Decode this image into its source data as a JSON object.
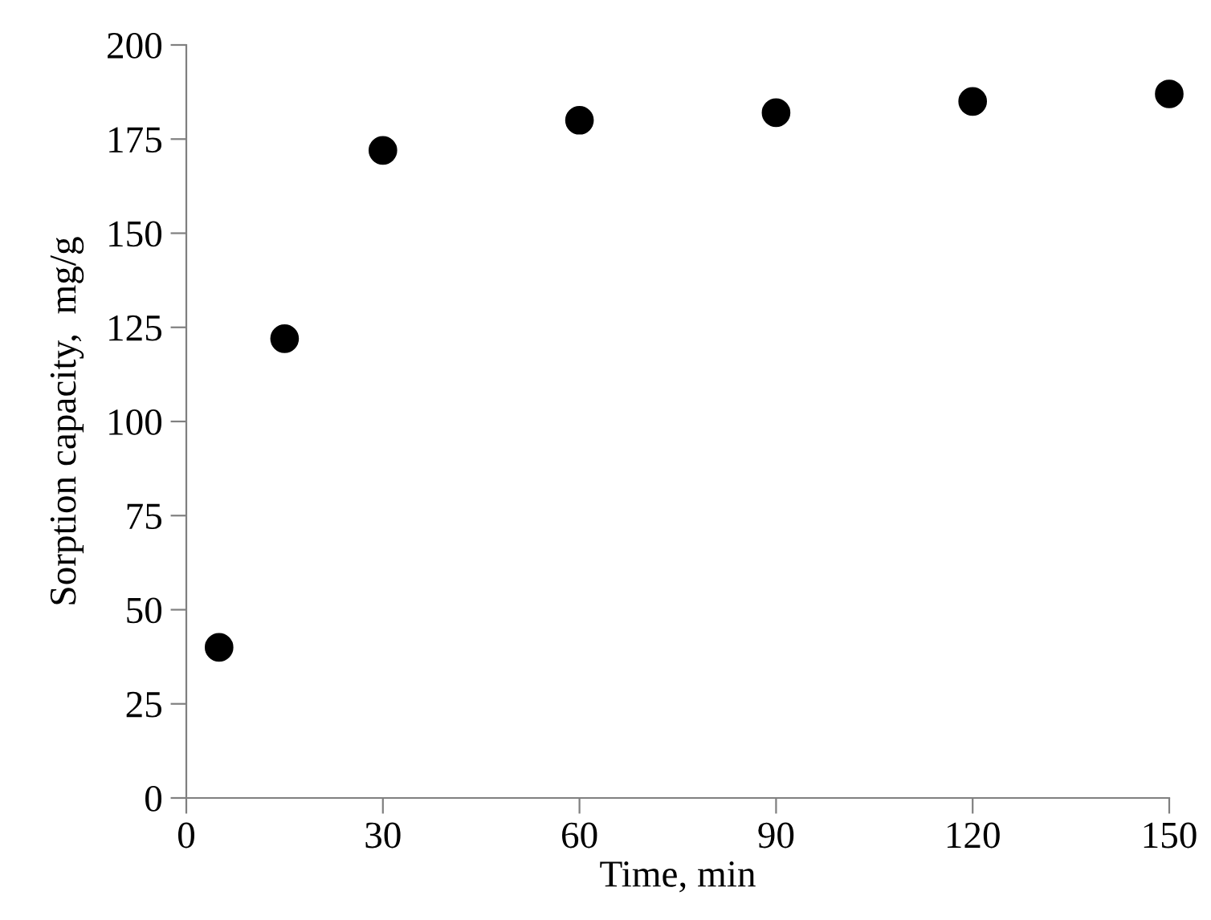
{
  "chart_data": {
    "type": "scatter",
    "xlabel": "Time, min",
    "ylabel": "Sorption capacity,  mg/g",
    "x": [
      5,
      15,
      30,
      60,
      90,
      120,
      150
    ],
    "values": [
      40,
      122,
      172,
      180,
      182,
      185,
      187
    ],
    "color": "#000000",
    "marker": "circle",
    "xlim": [
      0,
      150
    ],
    "xticks": [
      0,
      30,
      60,
      90,
      120,
      150
    ],
    "ylim": [
      0,
      200
    ],
    "yticks": [
      0,
      25,
      50,
      75,
      100,
      125,
      150,
      175,
      200
    ],
    "grid": false,
    "legend": false
  }
}
